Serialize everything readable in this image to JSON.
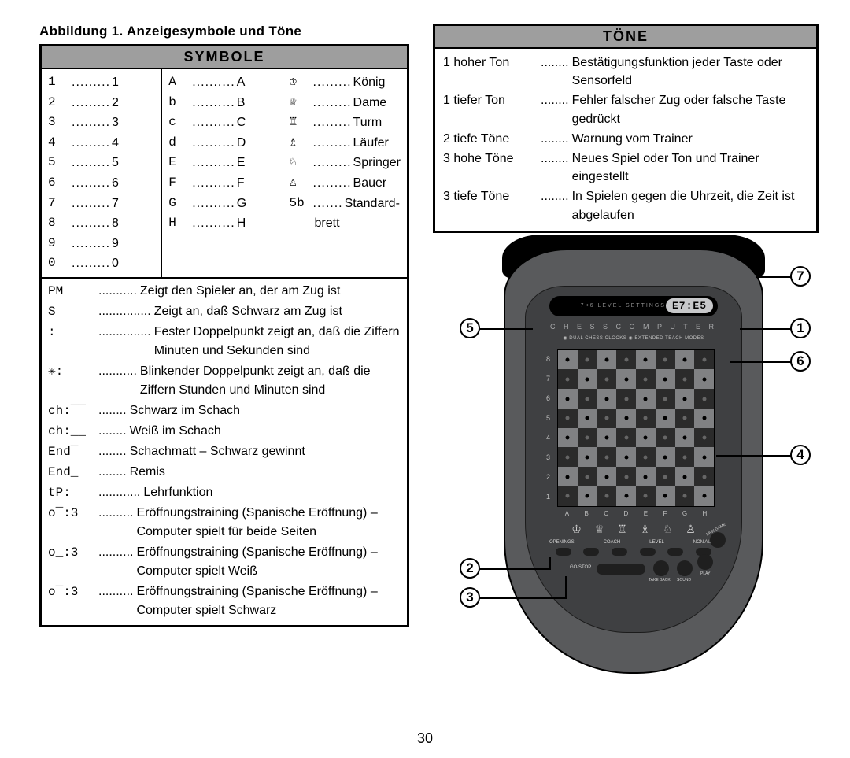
{
  "caption": "Abbildung 1. Anzeigesymbole und Töne",
  "page_number": "30",
  "symbole": {
    "header": "SYMBOLE",
    "col1": [
      {
        "g": "1",
        "d": ".........",
        "v": "1"
      },
      {
        "g": "2",
        "d": ".........",
        "v": "2"
      },
      {
        "g": "3",
        "d": ".........",
        "v": "3"
      },
      {
        "g": "4",
        "d": ".........",
        "v": "4"
      },
      {
        "g": "5",
        "d": ".........",
        "v": "5"
      },
      {
        "g": "6",
        "d": ".........",
        "v": "6"
      },
      {
        "g": "7",
        "d": ".........",
        "v": "7"
      },
      {
        "g": "8",
        "d": ".........",
        "v": "8"
      },
      {
        "g": "9",
        "d": ".........",
        "v": "9"
      },
      {
        "g": "0",
        "d": ".........",
        "v": "0"
      }
    ],
    "col2": [
      {
        "g": "A",
        "d": "..........",
        "v": "A"
      },
      {
        "g": "b",
        "d": "..........",
        "v": "B"
      },
      {
        "g": "c",
        "d": "..........",
        "v": "C"
      },
      {
        "g": "d",
        "d": "..........",
        "v": "D"
      },
      {
        "g": "E",
        "d": "..........",
        "v": "E"
      },
      {
        "g": "F",
        "d": "..........",
        "v": "F"
      },
      {
        "g": "G",
        "d": "..........",
        "v": "G"
      },
      {
        "g": "H",
        "d": "..........",
        "v": "H"
      }
    ],
    "col3": [
      {
        "g": "♔",
        "d": ".........",
        "v": "König"
      },
      {
        "g": "♕",
        "d": ".........",
        "v": "Dame"
      },
      {
        "g": "♖",
        "d": ".........",
        "v": "Turm"
      },
      {
        "g": "♗",
        "d": ".........",
        "v": "Läufer"
      },
      {
        "g": "♘",
        "d": ".........",
        "v": "Springer"
      },
      {
        "g": "♙",
        "d": ".........",
        "v": "Bauer"
      },
      {
        "g": "5b",
        "d": ".......",
        "v": "Standard-"
      },
      {
        "g": "",
        "d": "",
        "v": "   brett"
      }
    ],
    "long": [
      {
        "k": "PM",
        "s": "...........",
        "d": "Zeigt den Spieler an, der am Zug ist"
      },
      {
        "k": "S",
        "s": "...............",
        "d": "Zeigt an, daß Schwarz am Zug ist"
      },
      {
        "k": ":",
        "s": "...............",
        "d": "Fester Doppelpunkt zeigt an, daß die Ziffern Minuten und Sekunden sind"
      },
      {
        "k": "✳:",
        "s": "...........",
        "d": "Blinkender Doppelpunkt zeigt an, daß die Ziffern Stunden und Minuten sind"
      },
      {
        "k": "ch:‾‾",
        "s": "........",
        "d": "Schwarz im Schach"
      },
      {
        "k": "ch:__",
        "s": "........",
        "d": "Weiß im Schach"
      },
      {
        "k": "End‾",
        "s": "........",
        "d": "Schachmatt – Schwarz gewinnt"
      },
      {
        "k": "End_",
        "s": "........",
        "d": "Remis"
      },
      {
        "k": "tP:",
        "s": "............",
        "d": "Lehrfunktion"
      },
      {
        "k": "o‾:3",
        "s": "..........",
        "d": "Eröffnungstraining (Spanische Eröffnung) – Computer spielt für beide Seiten"
      },
      {
        "k": "o_:3",
        "s": "..........",
        "d": "Eröffnungstraining (Spanische Eröffnung) – Computer spielt Weiß"
      },
      {
        "k": "o‾:3",
        "s": "..........",
        "d": "Eröffnungstraining (Spanische Eröffnung) – Computer spielt Schwarz"
      }
    ]
  },
  "tone": {
    "header": "TÖNE",
    "rows": [
      {
        "k": "1 hoher Ton",
        "s": "........",
        "d": "Bestätigungsfunktion jeder Taste oder Sensorfeld"
      },
      {
        "k": "1 tiefer Ton",
        "s": "........",
        "d": "Fehler falscher Zug oder falsche Taste gedrückt"
      },
      {
        "k": "2 tiefe Töne",
        "s": "........",
        "d": "Warnung vom Trainer"
      },
      {
        "k": "3 hohe Töne",
        "s": "........",
        "d": "Neues Spiel oder Ton und Trainer eingestellt"
      },
      {
        "k": "3 tiefe Töne",
        "s": "........",
        "d": "In Spielen gegen die Uhrzeit, die Zeit ist abgelaufen"
      }
    ]
  },
  "device": {
    "lcd_label": "7×6 LEVEL SETTINGS",
    "lcd_value": "E7:E5",
    "title": "C H E S S   C O M P U T E R",
    "badges": "◉ DUAL CHESS CLOCKS   ◉ EXTENDED TEACH MODES",
    "ranks": [
      "8",
      "7",
      "6",
      "5",
      "4",
      "3",
      "2",
      "1"
    ],
    "files": [
      "A",
      "B",
      "C",
      "D",
      "E",
      "F",
      "G",
      "H"
    ],
    "pieces": [
      "♔",
      "♕",
      "♖",
      "♗",
      "♘",
      "♙"
    ],
    "btn_labels": [
      "OPENINGS",
      "COACH",
      "LEVEL",
      "NON AUTO"
    ],
    "gostop": "GO/STOP",
    "take_back": "TAKE BACK",
    "sound": "SOUND",
    "play": "PLAY",
    "new_game": "NEW GAME"
  },
  "callouts": {
    "c1": "1",
    "c2": "2",
    "c3": "3",
    "c4": "4",
    "c5": "5",
    "c6": "6",
    "c7": "7"
  }
}
